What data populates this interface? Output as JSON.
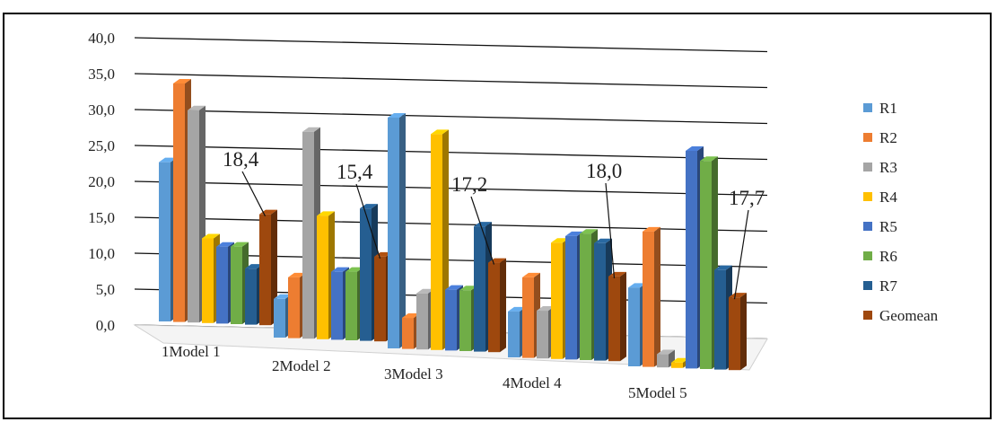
{
  "chart_data": {
    "type": "bar",
    "style": "3d-clustered",
    "categories": [
      "1Model 1",
      "2Model 2",
      "3Model 3",
      "4Model 4",
      "5Model 5"
    ],
    "ylim": [
      0,
      40
    ],
    "yticks": [
      "0,0",
      "5,0",
      "10,0",
      "15,0",
      "20,0",
      "25,0",
      "30,0",
      "35,0",
      "40,0"
    ],
    "grid": true,
    "legend_position": "right",
    "series": [
      {
        "name": "R1",
        "color": "#5B9BD5",
        "values": [
          25.5,
          5.3,
          37.5,
          6.5,
          12.0
        ]
      },
      {
        "name": "R2",
        "color": "#ED7D31",
        "values": [
          38.8,
          9.0,
          4.0,
          12.3,
          21.5
        ]
      },
      {
        "name": "R3",
        "color": "#A5A5A5",
        "values": [
          34.4,
          33.5,
          8.2,
          6.8,
          1.0
        ]
      },
      {
        "name": "R4",
        "color": "#FFC000",
        "values": [
          13.0,
          19.5,
          35.0,
          18.3,
          -1.0
        ]
      },
      {
        "name": "R5",
        "color": "#4472C4",
        "values": [
          11.7,
          10.2,
          9.0,
          19.5,
          35.3
        ]
      },
      {
        "name": "R6",
        "color": "#70AD47",
        "values": [
          11.8,
          10.3,
          9.0,
          20.0,
          33.7
        ]
      },
      {
        "name": "R7",
        "color": "#255E91",
        "values": [
          8.2,
          21.0,
          19.8,
          18.5,
          15.5
        ]
      },
      {
        "name": "Geomean",
        "color": "#9E480E",
        "values": [
          17.4,
          13.0,
          13.8,
          13.0,
          11.0
        ]
      }
    ],
    "data_labels": [
      "18,4",
      "15,4",
      "17,2",
      "18,0",
      "17,7"
    ]
  }
}
